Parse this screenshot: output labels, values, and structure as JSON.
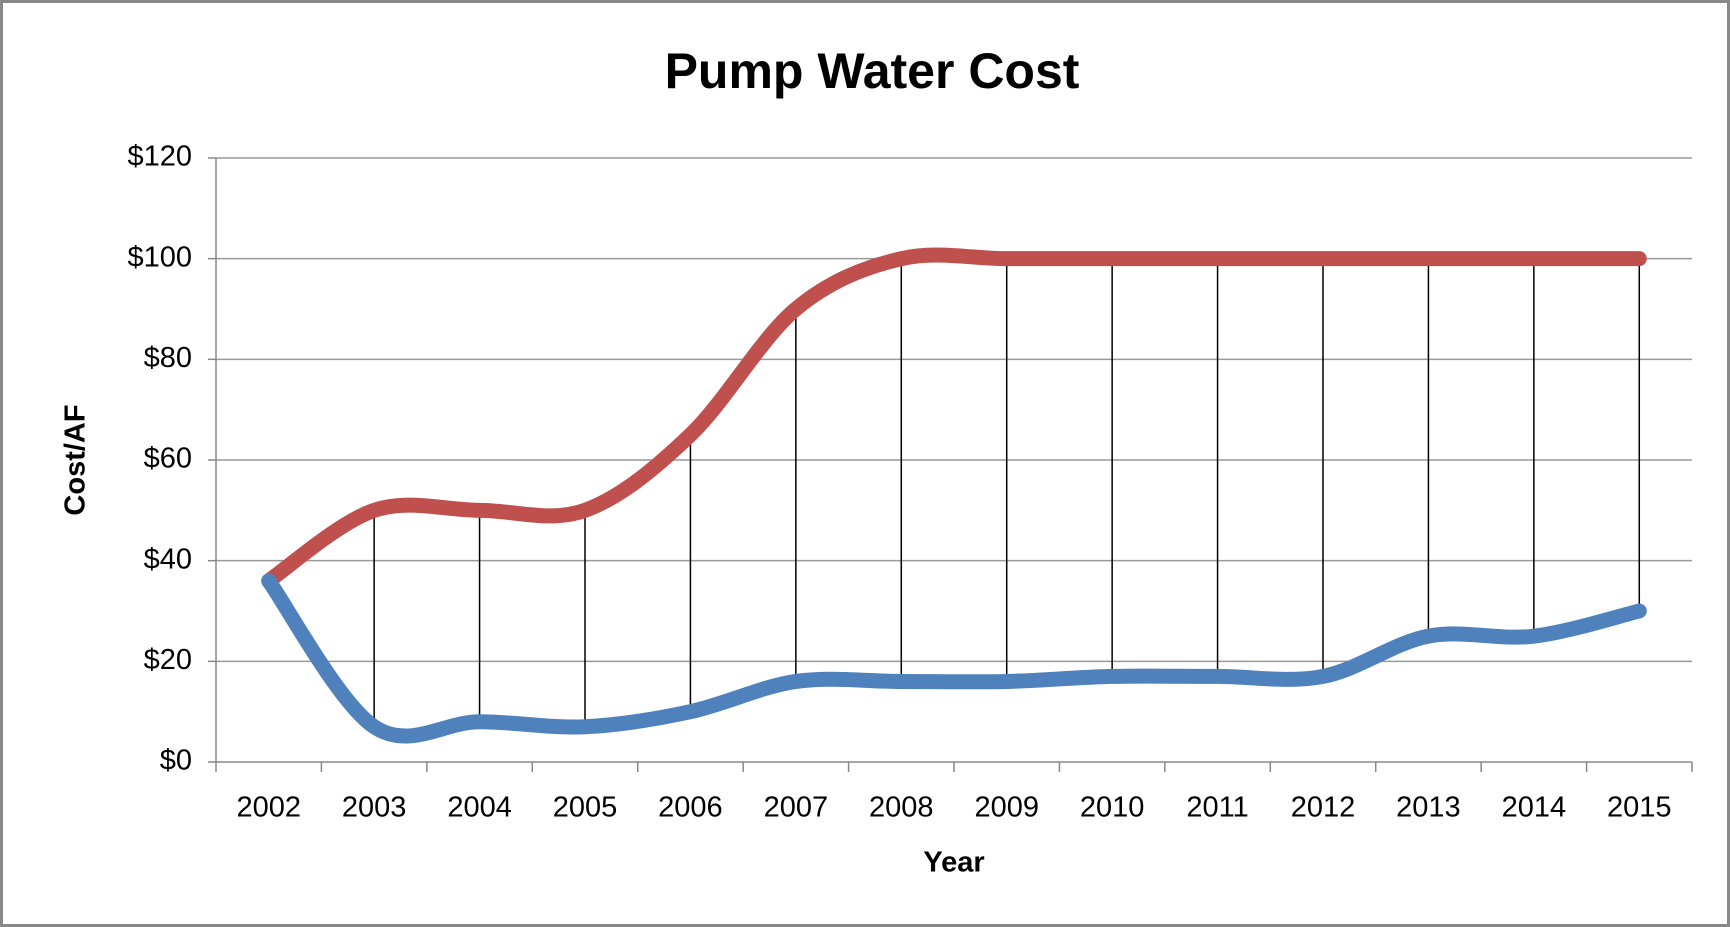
{
  "chart_data": {
    "type": "line",
    "title": "Pump Water Cost",
    "x_label": "Year",
    "y_label": "Cost/AF",
    "categories": [
      "2002",
      "2003",
      "2004",
      "2005",
      "2006",
      "2007",
      "2008",
      "2009",
      "2010",
      "2011",
      "2012",
      "2013",
      "2014",
      "2015"
    ],
    "series": [
      {
        "color": "#c0504d",
        "values": [
          36,
          50,
          50,
          50,
          65,
          90,
          100,
          100,
          100,
          100,
          100,
          100,
          100,
          100
        ]
      },
      {
        "color": "#4f81bd",
        "values": [
          36,
          7,
          8,
          7,
          10,
          16,
          16,
          16,
          17,
          17,
          17,
          25,
          25,
          30
        ]
      }
    ],
    "high_low_lines": true,
    "smooth": true,
    "ylim": [
      0,
      120
    ],
    "yticks": [
      {
        "value": 0,
        "label": "$0"
      },
      {
        "value": 20,
        "label": "$20"
      },
      {
        "value": 40,
        "label": "$40"
      },
      {
        "value": 60,
        "label": "$60"
      },
      {
        "value": 80,
        "label": "$80"
      },
      {
        "value": 100,
        "label": "$100"
      },
      {
        "value": 120,
        "label": "$120"
      }
    ],
    "grid": true
  }
}
